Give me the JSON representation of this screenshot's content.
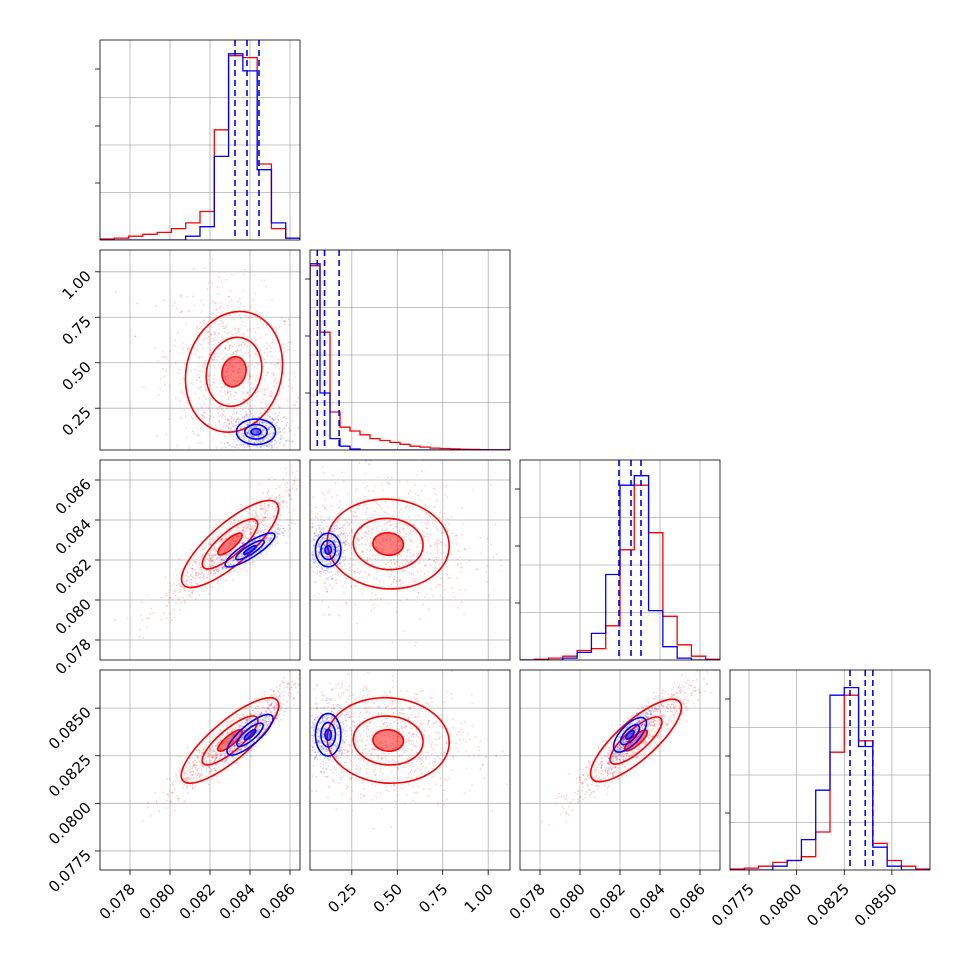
{
  "chart_data": {
    "type": "scatter",
    "title": "",
    "series_colors": {
      "a": "#ff0000",
      "b": "#0000ff"
    },
    "grid": true,
    "variables": [
      {
        "index": 0,
        "range": [
          0.0765,
          0.0865
        ],
        "ticks": [
          "0.078",
          "0.080",
          "0.082",
          "0.084",
          "0.086"
        ],
        "tick_values": [
          0.078,
          0.08,
          0.082,
          0.084,
          0.086
        ]
      },
      {
        "index": 1,
        "range": [
          0.02,
          1.12
        ],
        "ticks": [
          "0.25",
          "0.50",
          "0.75",
          "1.00"
        ],
        "tick_values": [
          0.25,
          0.5,
          0.75,
          1.0
        ]
      },
      {
        "index": 2,
        "range": [
          0.077,
          0.087
        ],
        "ticks": [
          "0.078",
          "0.080",
          "0.082",
          "0.084",
          "0.086"
        ],
        "tick_values": [
          0.078,
          0.08,
          0.082,
          0.084,
          0.086
        ]
      },
      {
        "index": 3,
        "range": [
          0.0765,
          0.087
        ],
        "ticks": [
          "0.0775",
          "0.0800",
          "0.0825",
          "0.0850"
        ],
        "tick_values": [
          0.0775,
          0.08,
          0.0825,
          0.085
        ]
      }
    ],
    "histograms": [
      {
        "index": 0,
        "red": [
          0.005,
          0.01,
          0.02,
          0.03,
          0.04,
          0.06,
          0.09,
          0.15,
          0.58,
          0.97,
          0.96,
          0.4,
          0.06,
          0.01
        ],
        "blue": [
          0,
          0,
          0,
          0,
          0,
          0,
          0.02,
          0.07,
          0.44,
          0.98,
          0.89,
          0.37,
          0.09,
          0.01
        ],
        "blue_quantiles": [
          0.08325,
          0.08385,
          0.08445
        ]
      },
      {
        "index": 1,
        "red": [
          0.97,
          0.62,
          0.2,
          0.12,
          0.1,
          0.08,
          0.06,
          0.05,
          0.04,
          0.03,
          0.02,
          0.015,
          0.01,
          0.008,
          0.006,
          0.004,
          0.003,
          0.002,
          0.001,
          0.001
        ],
        "blue": [
          0.98,
          0.3,
          0.06,
          0.02,
          0.005,
          0,
          0,
          0,
          0,
          0,
          0,
          0,
          0,
          0,
          0,
          0,
          0,
          0,
          0,
          0
        ],
        "blue_quantiles": [
          0.06,
          0.1,
          0.18
        ]
      },
      {
        "index": 2,
        "red": [
          0,
          0.004,
          0.01,
          0.02,
          0.05,
          0.06,
          0.18,
          0.58,
          0.92,
          0.67,
          0.23,
          0.08,
          0.02,
          0.004
        ],
        "blue": [
          0,
          0,
          0,
          0.01,
          0.04,
          0.14,
          0.45,
          0.92,
          0.97,
          0.26,
          0.07,
          0.01,
          0,
          0
        ],
        "blue_quantiles": [
          0.08195,
          0.08255,
          0.08305
        ]
      },
      {
        "index": 3,
        "red": [
          0.005,
          0.01,
          0.02,
          0.04,
          0.05,
          0.07,
          0.2,
          0.62,
          0.92,
          0.68,
          0.14,
          0.05,
          0.02,
          0.005
        ],
        "blue": [
          0,
          0,
          0,
          0.02,
          0.05,
          0.16,
          0.42,
          0.92,
          0.96,
          0.65,
          0.12,
          0.02,
          0,
          0
        ],
        "blue_quantiles": [
          0.0828,
          0.0836,
          0.084
        ]
      }
    ],
    "scatter_clouds": [
      {
        "row": 1,
        "col": 0,
        "red": {
          "mean": [
            0.0832,
            0.45
          ],
          "sd": [
            0.0017,
            0.24
          ],
          "rho": -0.2
        },
        "blue": {
          "mean": [
            0.0843,
            0.12
          ],
          "sd": [
            0.0007,
            0.05
          ],
          "rho": 0.0
        }
      },
      {
        "row": 2,
        "col": 0,
        "red": {
          "mean": [
            0.083,
            0.0828
          ],
          "sd": [
            0.0017,
            0.0016
          ],
          "rho": 0.93
        },
        "blue": {
          "mean": [
            0.084,
            0.0825
          ],
          "sd": [
            0.0008,
            0.0006
          ],
          "rho": 0.85
        }
      },
      {
        "row": 2,
        "col": 1,
        "red": {
          "mean": [
            0.45,
            0.0828
          ],
          "sd": [
            0.24,
            0.0016
          ],
          "rho": -0.1
        },
        "blue": {
          "mean": [
            0.12,
            0.0825
          ],
          "sd": [
            0.05,
            0.0006
          ],
          "rho": 0.0
        }
      },
      {
        "row": 3,
        "col": 0,
        "red": {
          "mean": [
            0.083,
            0.0833
          ],
          "sd": [
            0.0017,
            0.0016
          ],
          "rho": 0.95
        },
        "blue": {
          "mean": [
            0.084,
            0.0836
          ],
          "sd": [
            0.0008,
            0.0008
          ],
          "rho": 0.9
        }
      },
      {
        "row": 3,
        "col": 1,
        "red": {
          "mean": [
            0.45,
            0.0833
          ],
          "sd": [
            0.24,
            0.0016
          ],
          "rho": -0.1
        },
        "blue": {
          "mean": [
            0.12,
            0.0836
          ],
          "sd": [
            0.05,
            0.0008
          ],
          "rho": 0.0
        }
      },
      {
        "row": 3,
        "col": 2,
        "red": {
          "mean": [
            0.0828,
            0.0833
          ],
          "sd": [
            0.0016,
            0.0016
          ],
          "rho": 0.93
        },
        "blue": {
          "mean": [
            0.0825,
            0.0836
          ],
          "sd": [
            0.0006,
            0.0008
          ],
          "rho": 0.85
        }
      }
    ]
  }
}
